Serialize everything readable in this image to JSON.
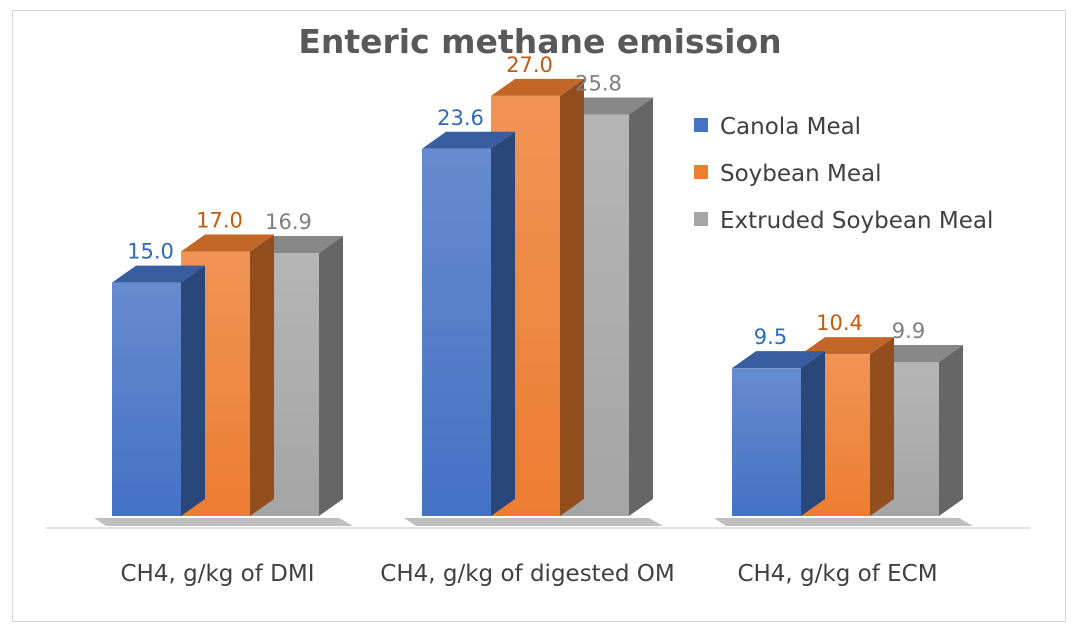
{
  "chart_data": {
    "type": "bar",
    "title": "Enteric methane emission",
    "categories": [
      "CH4, g/kg of DMI",
      "CH4, g/kg of digested OM",
      "CH4, g/kg of ECM"
    ],
    "series": [
      {
        "name": "Canola Meal",
        "values": [
          15.0,
          23.6,
          9.5
        ],
        "color": "#4472C4",
        "label_color": "#2E6CB9"
      },
      {
        "name": "Soybean Meal",
        "values": [
          17.0,
          27.0,
          10.4
        ],
        "color": "#ED7D31",
        "label_color": "#C55A11"
      },
      {
        "name": "Extruded Soybean Meal",
        "values": [
          16.9,
          25.8,
          9.9
        ],
        "color": "#A5A5A5",
        "label_color": "#7F7F7F"
      }
    ],
    "ylim": [
      0,
      30
    ],
    "grid": false,
    "legend": "right",
    "three_d": true
  }
}
